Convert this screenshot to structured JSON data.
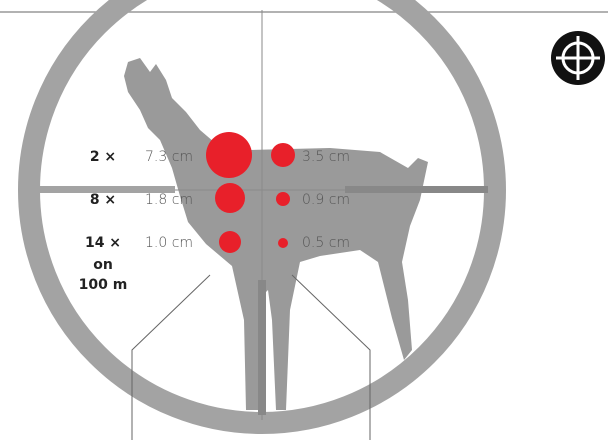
{
  "rows": [
    {
      "magnification": "2 ×",
      "left": "7.3 cm",
      "right": "3.5 cm"
    },
    {
      "magnification": "8 ×",
      "left": "1.8 cm",
      "right": "0.9 cm"
    },
    {
      "magnification": "14 ×",
      "left": "1.0 cm",
      "right": "0.5 cm"
    }
  ],
  "distance_note": [
    "on",
    "100 m"
  ]
}
